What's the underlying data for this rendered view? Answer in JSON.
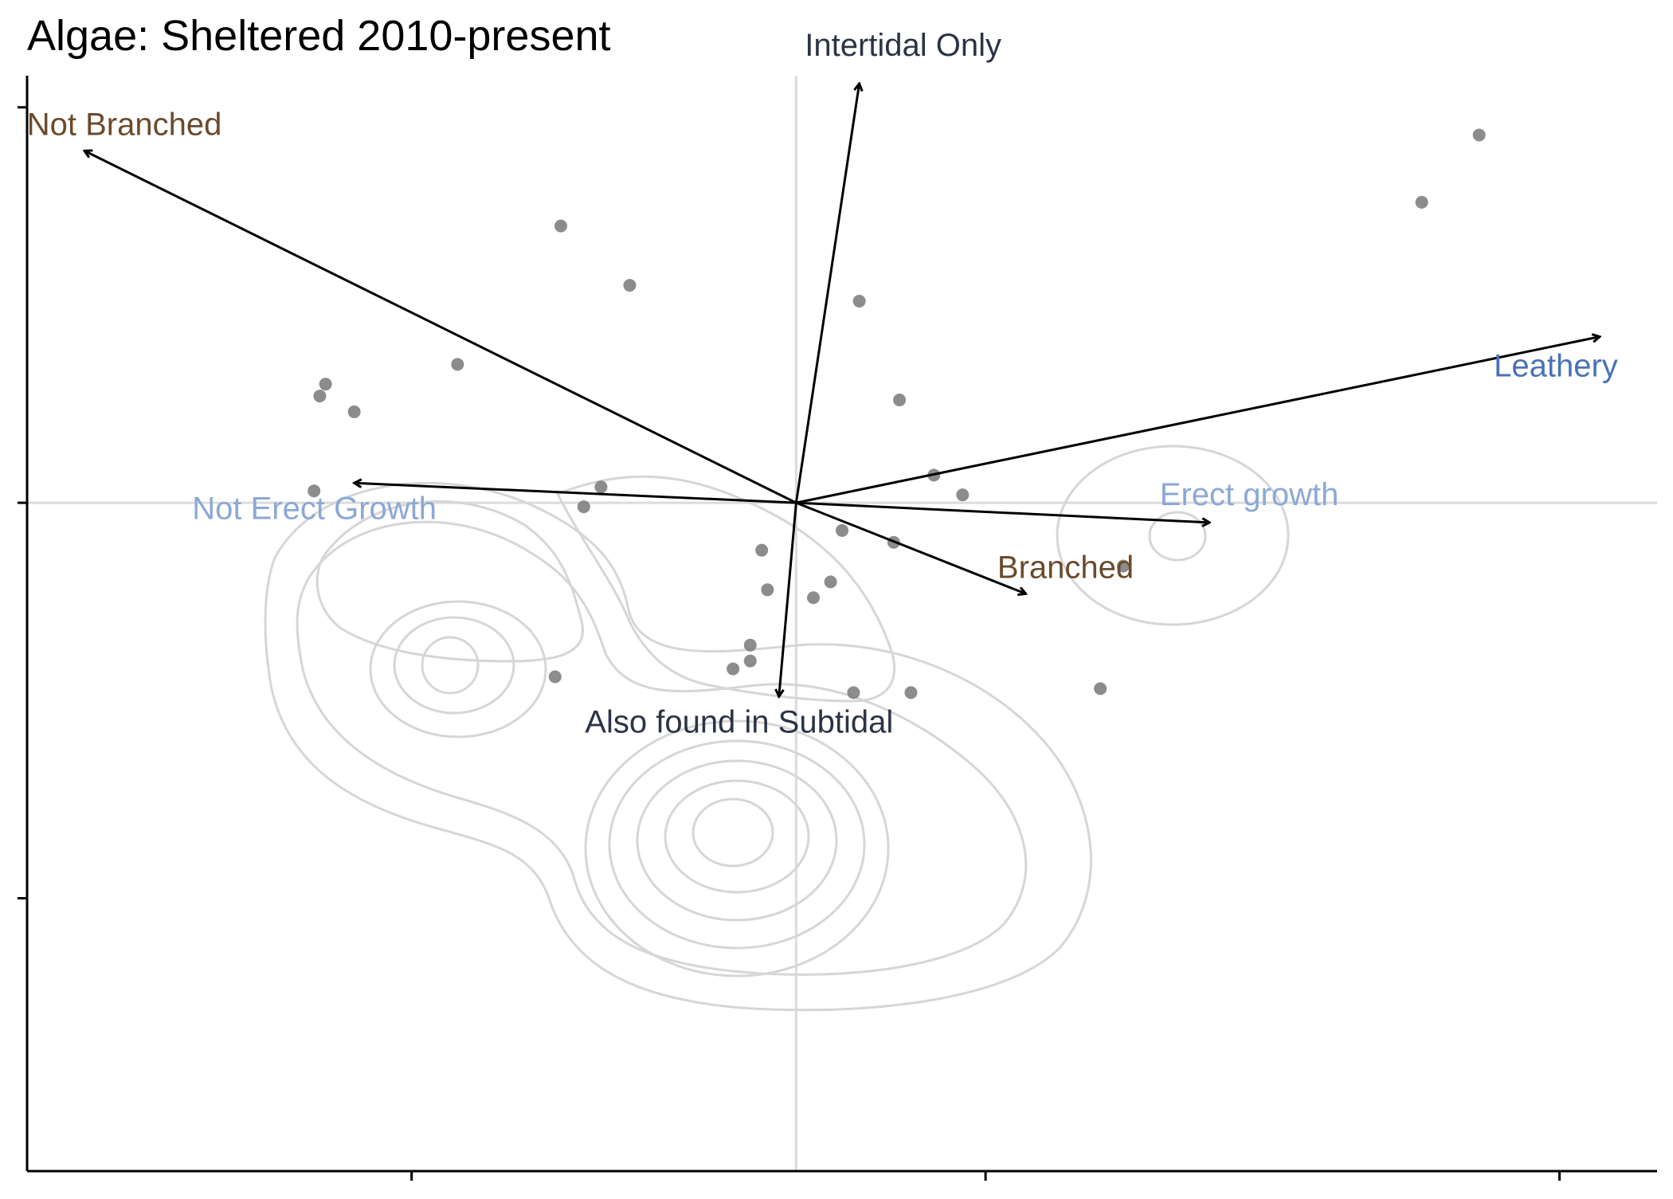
{
  "chart_data": {
    "type": "scatter",
    "title": "Algae: Sheltered 2010-present",
    "xlabel": "",
    "ylabel": "",
    "xlim": [
      -0.67,
      2.17
    ],
    "ylim": [
      -0.69,
      2.08
    ],
    "x_ticks": [
      0,
      1,
      2
    ],
    "y_ticks": [
      0,
      1,
      2
    ],
    "tick_labels_shown": false,
    "grid": false,
    "reference_lines": {
      "x": 0.67,
      "y": 1.0
    },
    "points": [
      {
        "x": 0.26,
        "y": 1.7
      },
      {
        "x": 0.38,
        "y": 1.55
      },
      {
        "x": 0.78,
        "y": 1.51
      },
      {
        "x": 0.08,
        "y": 1.35
      },
      {
        "x": -0.15,
        "y": 1.3
      },
      {
        "x": -0.16,
        "y": 1.27
      },
      {
        "x": -0.1,
        "y": 1.23
      },
      {
        "x": 0.85,
        "y": 1.26
      },
      {
        "x": 0.91,
        "y": 1.07
      },
      {
        "x": 0.96,
        "y": 1.02
      },
      {
        "x": 0.33,
        "y": 1.04
      },
      {
        "x": 0.3,
        "y": 0.99
      },
      {
        "x": -0.17,
        "y": 1.03
      },
      {
        "x": 0.84,
        "y": 0.9
      },
      {
        "x": 0.75,
        "y": 0.93
      },
      {
        "x": 1.24,
        "y": 0.84
      },
      {
        "x": 0.61,
        "y": 0.88
      },
      {
        "x": 0.73,
        "y": 0.8
      },
      {
        "x": 0.62,
        "y": 0.78
      },
      {
        "x": 0.7,
        "y": 0.76
      },
      {
        "x": 0.59,
        "y": 0.64
      },
      {
        "x": 0.59,
        "y": 0.6
      },
      {
        "x": 0.56,
        "y": 0.58
      },
      {
        "x": 0.25,
        "y": 0.56
      },
      {
        "x": 0.77,
        "y": 0.52
      },
      {
        "x": 0.87,
        "y": 0.52
      },
      {
        "x": 1.2,
        "y": 0.53
      },
      {
        "x": 1.76,
        "y": 1.76
      },
      {
        "x": 1.86,
        "y": 1.93
      }
    ],
    "vectors": [
      {
        "label": "Intertidal Only",
        "x": 0.78,
        "y": 2.06,
        "color": "#2b3446"
      },
      {
        "label": "Not Branched",
        "x": -0.57,
        "y": 1.89,
        "color": "#6b4a2b"
      },
      {
        "label": "Leathery",
        "x": 2.07,
        "y": 1.42,
        "color": "#4a72b8"
      },
      {
        "label": "Erect growth",
        "x": 1.39,
        "y": 0.95,
        "color": "#8ba8d6"
      },
      {
        "label": "Not Erect Growth",
        "x": -0.1,
        "y": 1.05,
        "color": "#8ba8d6"
      },
      {
        "label": "Branched",
        "x": 1.07,
        "y": 0.77,
        "color": "#6b4a2b"
      },
      {
        "label": "Also found in Subtidal",
        "x": 0.64,
        "y": 0.51,
        "color": "#2b3446"
      }
    ],
    "density_contours": true,
    "colors": {
      "points": "#7f7f7f",
      "contours": "#d6d6d6",
      "arrows": "#000000",
      "reference_lines": "#dcdcdc"
    }
  }
}
